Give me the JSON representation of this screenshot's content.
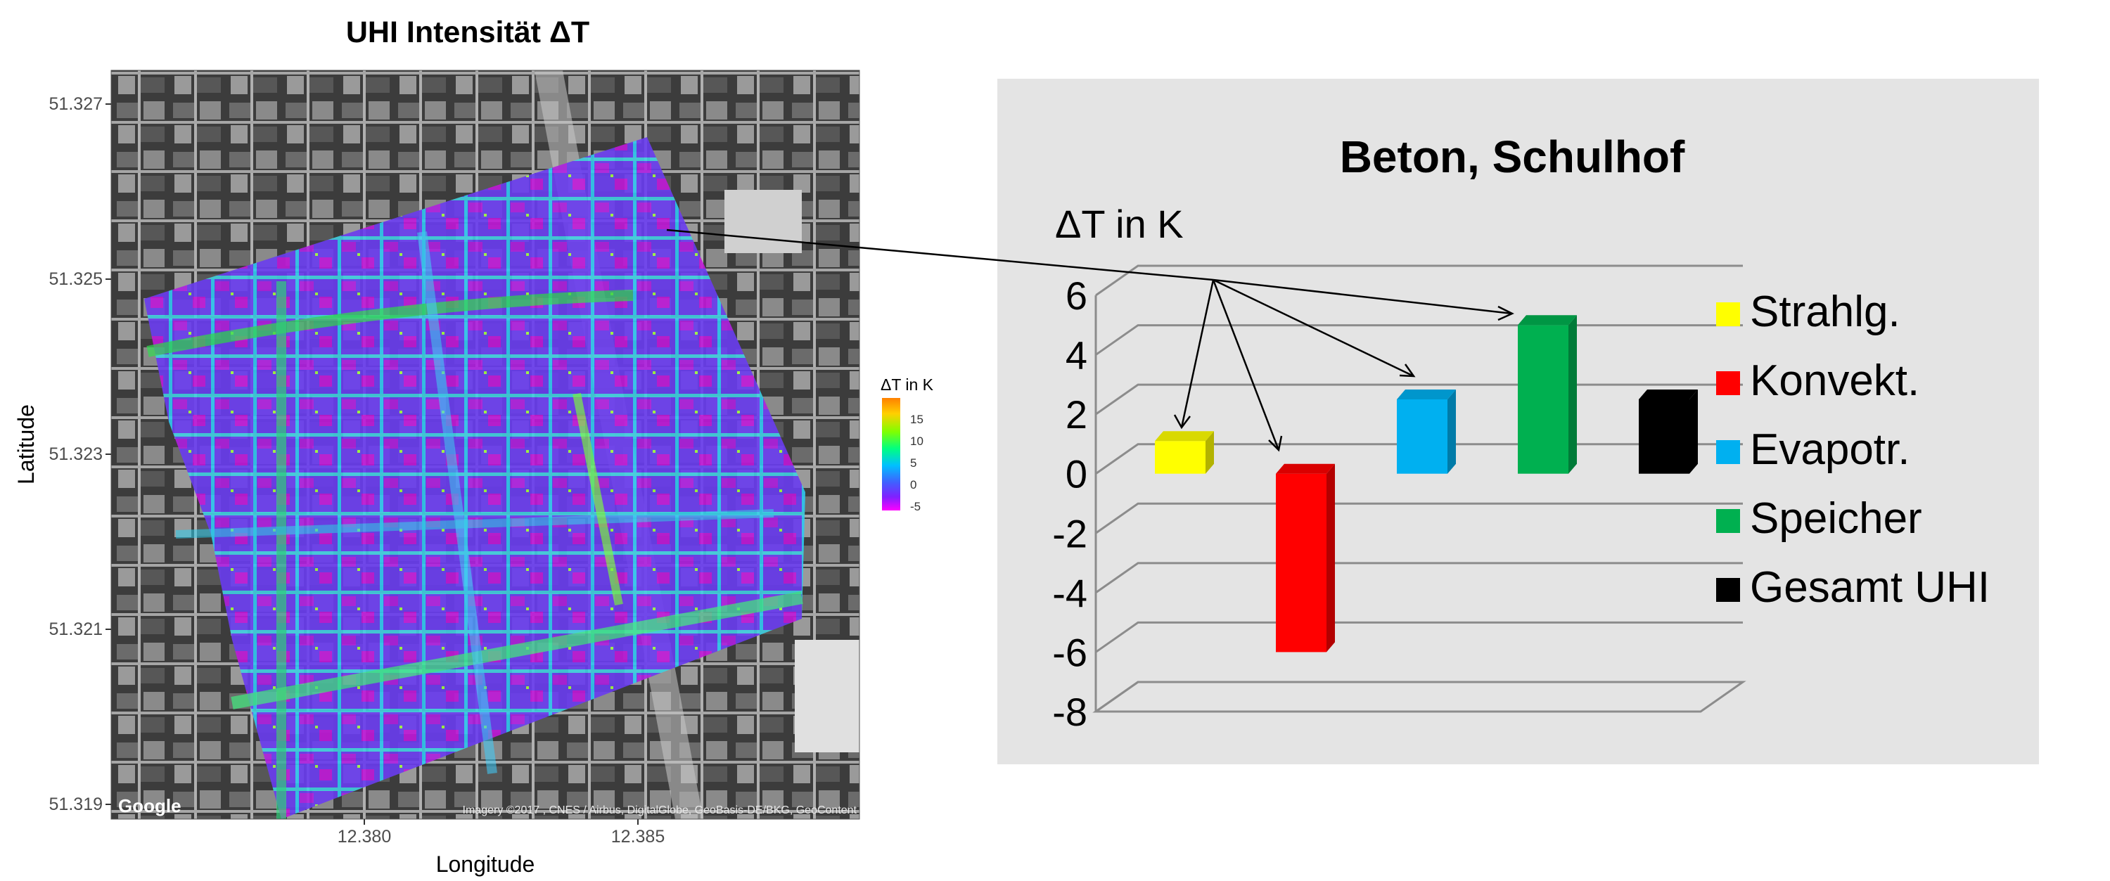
{
  "map_panel": {
    "title": "UHI Intensität ΔT",
    "xlabel": "Longitude",
    "ylabel": "Latitude",
    "y_ticks": [
      "51.327",
      "51.325",
      "51.323",
      "51.321",
      "51.319"
    ],
    "x_ticks": [
      "12.380",
      "12.385"
    ],
    "attribution": "Imagery ©2017 , CNES / Airbus, DigitalGlobe, GeoBasis-DE/BKG, GeoContent",
    "provider_logo": "Google",
    "legend": {
      "title": "ΔT in K",
      "ticks": [
        "15",
        "10",
        "5",
        "0",
        "-5"
      ],
      "colors": [
        "#ff8000",
        "#ffd000",
        "#80ff00",
        "#00ff80",
        "#00c0ff",
        "#4060ff",
        "#8020ff",
        "#ff00ff"
      ]
    }
  },
  "chart_data": {
    "type": "bar",
    "title": "Beton, Schulhof",
    "ylabel": "ΔT in K",
    "categories": [
      "Strahlg.",
      "Konvekt.",
      "Evapotr.",
      "Speicher",
      "Gesamt UHI"
    ],
    "values": [
      1.1,
      -6.0,
      2.5,
      5.0,
      2.5
    ],
    "colors": [
      "#ffff00",
      "#ff0000",
      "#00b0f0",
      "#00b050",
      "#000000"
    ],
    "ylim": [
      -8,
      6
    ],
    "yticks": [
      "6",
      "4",
      "2",
      "0",
      "-2",
      "-4",
      "-6",
      "-8"
    ],
    "legend_position": "right",
    "grid": true
  }
}
